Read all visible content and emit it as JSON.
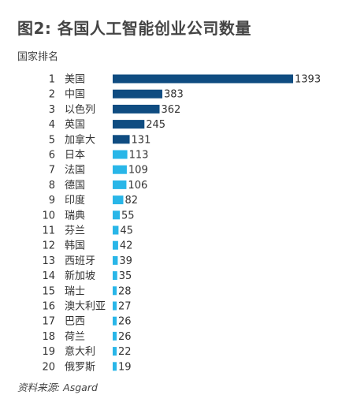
{
  "chart_data": {
    "type": "bar",
    "orientation": "horizontal",
    "title": "图2: 各国人工智能创业公司数量",
    "subtitle": "国家排名",
    "source": "资料来源: Asgard",
    "ranks": [
      "1",
      "2",
      "3",
      "4",
      "5",
      "6",
      "7",
      "8",
      "9",
      "10",
      "11",
      "12",
      "13",
      "14",
      "15",
      "16",
      "17",
      "18",
      "19",
      "20"
    ],
    "categories": [
      "美国",
      "中国",
      "以色列",
      "英国",
      "加拿大",
      "日本",
      "法国",
      "德国",
      "印度",
      "瑞典",
      "芬兰",
      "韩国",
      "西班牙",
      "新加坡",
      "瑞士",
      "澳大利亚",
      "巴西",
      "荷兰",
      "意大利",
      "俄罗斯"
    ],
    "values": [
      1393,
      383,
      362,
      245,
      131,
      113,
      109,
      106,
      82,
      55,
      45,
      42,
      39,
      35,
      28,
      27,
      26,
      26,
      22,
      19
    ],
    "colors": {
      "dark": "#0f4c81",
      "light": "#29b6e8"
    },
    "dark_bar_count": 5,
    "grid": false,
    "legend": "none"
  }
}
